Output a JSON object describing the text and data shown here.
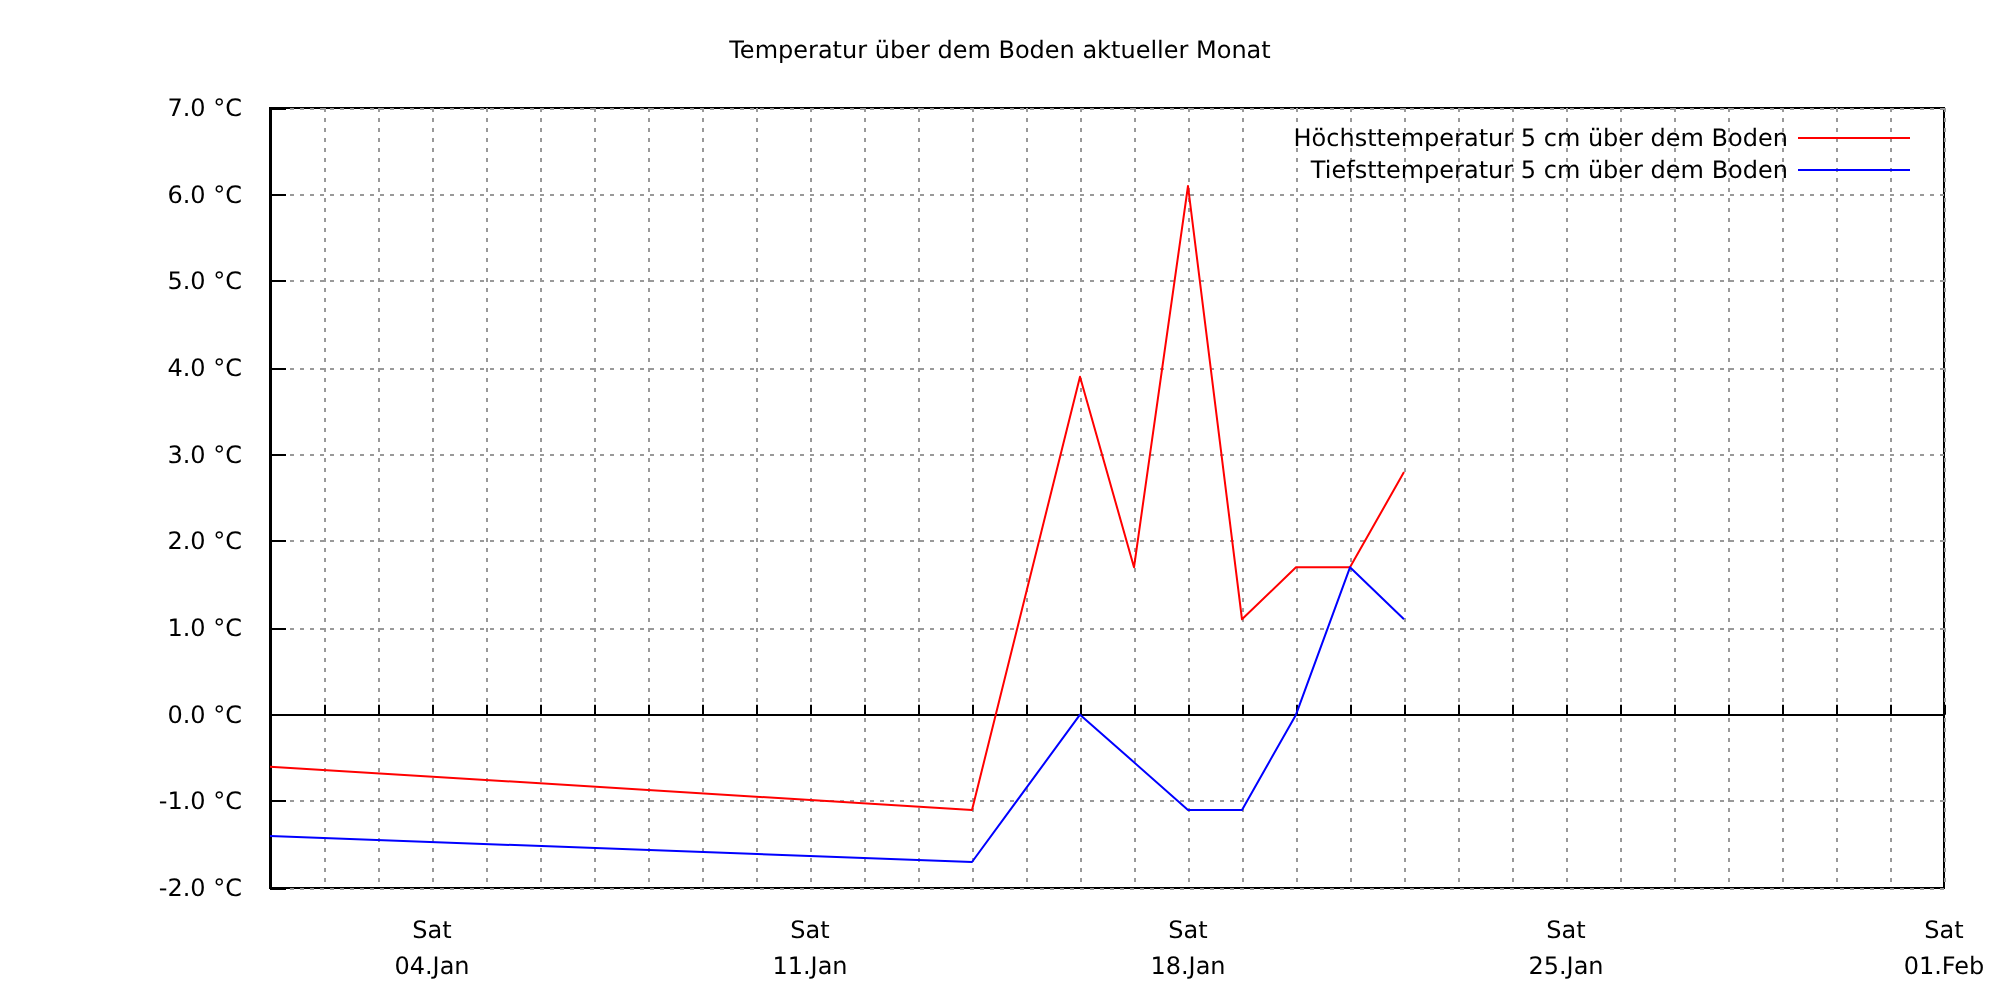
{
  "chart_data": {
    "type": "line",
    "title": "Temperatur über dem Boden aktueller Monat",
    "xlim": [
      "--01-01",
      "--02-01"
    ],
    "xticks": [
      {
        "value": "--01-01",
        "label": null
      },
      {
        "value": "--01-02",
        "label": null
      },
      {
        "value": "--01-03",
        "label": null
      },
      {
        "value": "--01-04",
        "label": "Sat\n04.Jan"
      },
      {
        "value": "--01-05",
        "label": null
      },
      {
        "value": "--01-06",
        "label": null
      },
      {
        "value": "--01-07",
        "label": null
      },
      {
        "value": "--01-08",
        "label": null
      },
      {
        "value": "--01-09",
        "label": null
      },
      {
        "value": "--01-10",
        "label": null
      },
      {
        "value": "--01-11",
        "label": "Sat\n11.Jan"
      },
      {
        "value": "--01-12",
        "label": null
      },
      {
        "value": "--01-13",
        "label": null
      },
      {
        "value": "--01-14",
        "label": null
      },
      {
        "value": "--01-15",
        "label": null
      },
      {
        "value": "--01-16",
        "label": null
      },
      {
        "value": "--01-17",
        "label": null
      },
      {
        "value": "--01-18",
        "label": "Sat\n18.Jan"
      },
      {
        "value": "--01-19",
        "label": null
      },
      {
        "value": "--01-20",
        "label": null
      },
      {
        "value": "--01-21",
        "label": null
      },
      {
        "value": "--01-22",
        "label": null
      },
      {
        "value": "--01-23",
        "label": null
      },
      {
        "value": "--01-24",
        "label": null
      },
      {
        "value": "--01-25",
        "label": "Sat\n25.Jan"
      },
      {
        "value": "--01-26",
        "label": null
      },
      {
        "value": "--01-27",
        "label": null
      },
      {
        "value": "--01-28",
        "label": null
      },
      {
        "value": "--01-29",
        "label": null
      },
      {
        "value": "--01-30",
        "label": null
      },
      {
        "value": "--01-31",
        "label": null
      },
      {
        "value": "--02-01",
        "label": "Sat\n01.Feb"
      }
    ],
    "ylim": [
      -2,
      7
    ],
    "yticks": [
      {
        "value": -2,
        "label": "-2.0 °C"
      },
      {
        "value": -1,
        "label": "-1.0 °C"
      },
      {
        "value": 0,
        "label": "0.0 °C"
      },
      {
        "value": 1,
        "label": "1.0 °C"
      },
      {
        "value": 2,
        "label": "2.0 °C"
      },
      {
        "value": 3,
        "label": "3.0 °C"
      },
      {
        "value": 4,
        "label": "4.0 °C"
      },
      {
        "value": 5,
        "label": "5.0 °C"
      },
      {
        "value": 6,
        "label": "6.0 °C"
      },
      {
        "value": 7,
        "label": "7.0 °C"
      }
    ],
    "x": [
      "--01-01",
      "--01-14",
      "--01-16",
      "--01-17",
      "--01-18",
      "--01-19",
      "--01-20",
      "--01-21",
      "--01-22"
    ],
    "series": [
      {
        "name": "Höchsttemperatur 5 cm über dem Boden",
        "color": "#ff0000",
        "values": [
          -0.6,
          -1.1,
          3.9,
          1.7,
          6.1,
          1.1,
          1.7,
          1.7,
          2.8
        ]
      },
      {
        "name": "Tiefsttemperatur 5 cm über dem Boden",
        "color": "#0000ff",
        "values": [
          -1.4,
          -1.7,
          0.0,
          -0.55,
          -1.1,
          -1.1,
          0.0,
          1.7,
          1.1
        ]
      }
    ],
    "grid": true,
    "legend": "top right",
    "marker": "none",
    "line_style": "solid"
  }
}
